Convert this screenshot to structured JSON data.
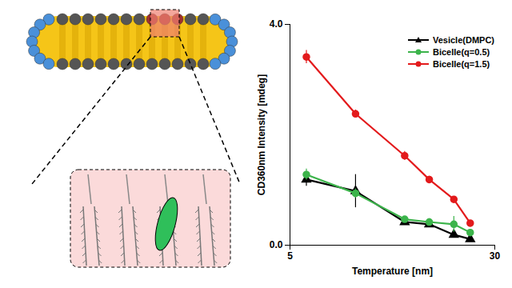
{
  "chart_data": {
    "type": "line",
    "x_label": "Temperature [nm]",
    "y_label": "CD360nm Intensity [mdeg]",
    "xlim": [
      5,
      30
    ],
    "xticks": [
      5,
      30
    ],
    "ylim": [
      0,
      4
    ],
    "yticks": [
      0,
      4
    ],
    "grid": false,
    "legend": "upper right",
    "x": [
      7,
      13,
      19,
      22,
      25,
      27
    ],
    "series": [
      {
        "name": "Vesicle(DMPC)",
        "color": "#000000",
        "marker": "triangle",
        "line_style": "solid",
        "values": [
          1.19,
          0.98,
          0.42,
          0.38,
          0.19,
          0.11
        ],
        "errors": [
          0.12,
          0.3,
          0.04,
          0.04,
          0.03,
          0.03
        ]
      },
      {
        "name": "Bicelle(q=0.5)",
        "color": "#3cb44b",
        "marker": "circle",
        "line_style": "solid",
        "values": [
          1.28,
          0.94,
          0.47,
          0.42,
          0.38,
          0.23
        ],
        "errors": [
          0.1,
          0.08,
          0.05,
          0.05,
          0.14,
          0.04
        ]
      },
      {
        "name": "Bicelle(q=1.5)",
        "color": "#e31a1c",
        "marker": "circle",
        "line_style": "solid",
        "values": [
          3.41,
          2.38,
          1.62,
          1.19,
          0.83,
          0.4
        ],
        "errors": [
          0.12,
          0.07,
          0.08,
          0.06,
          0.05,
          0.05
        ]
      }
    ]
  }
}
